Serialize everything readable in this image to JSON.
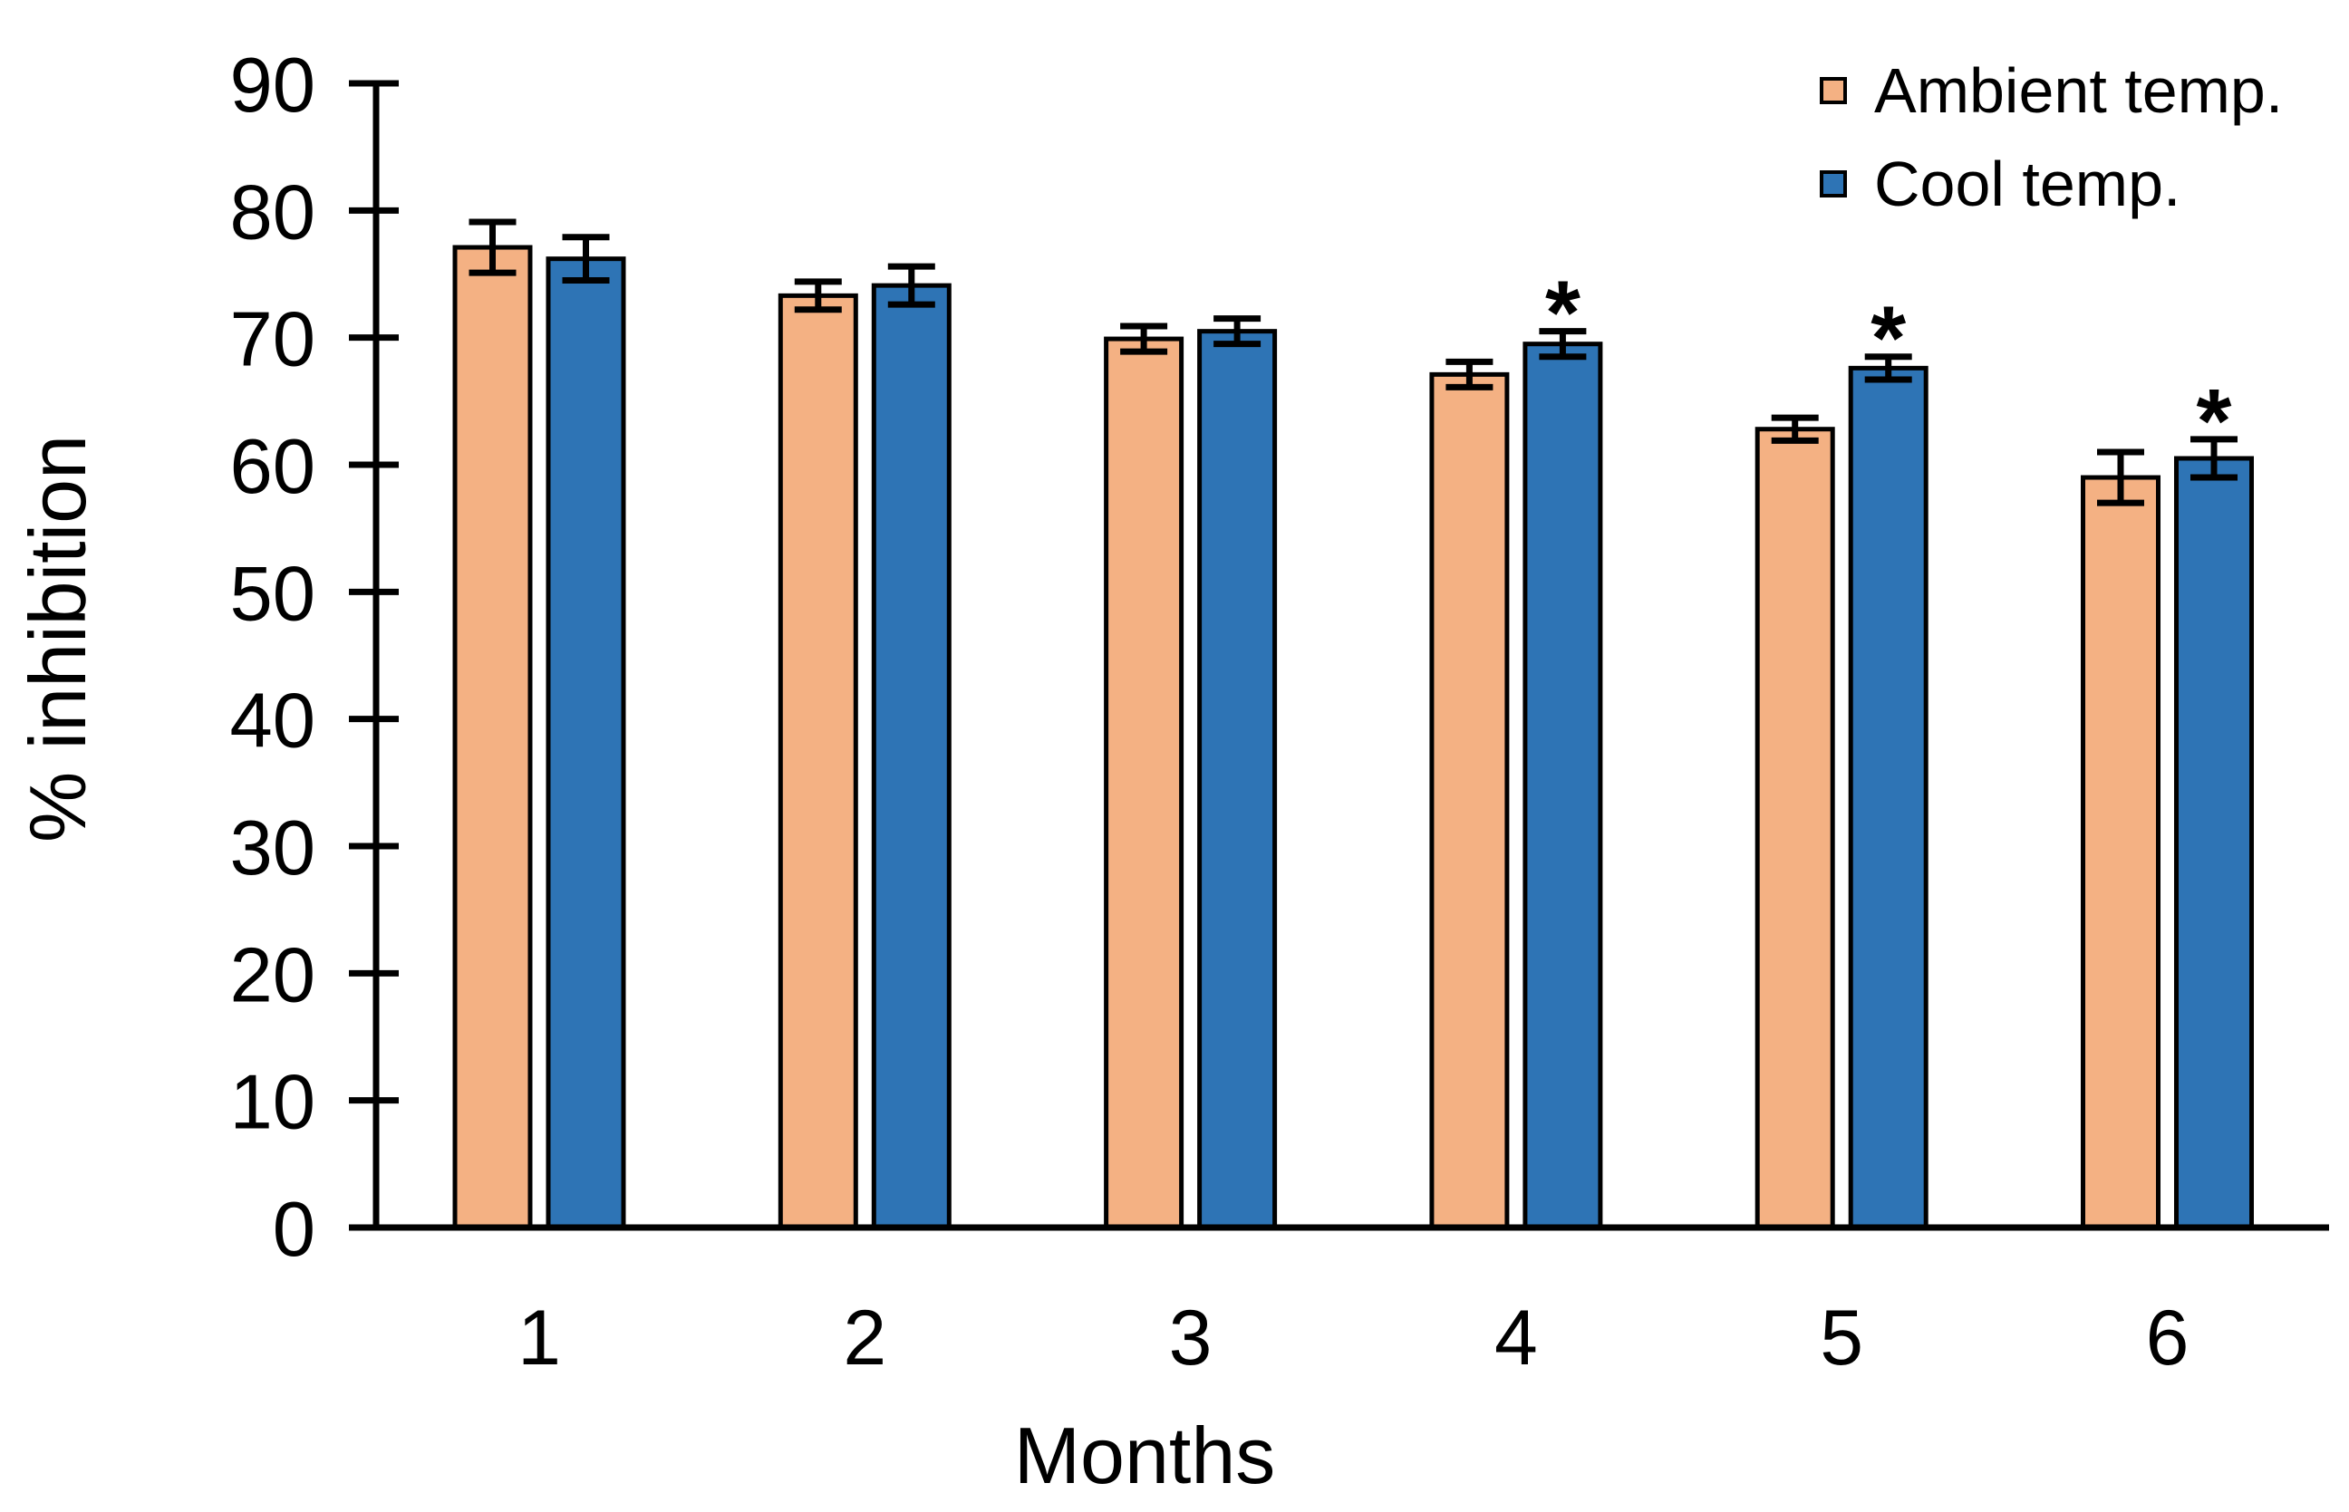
{
  "chart_data": {
    "type": "bar",
    "title": "",
    "xlabel": "Months",
    "ylabel": "% inhibition",
    "categories": [
      "1",
      "2",
      "3",
      "4",
      "5",
      "6"
    ],
    "ylim": [
      0,
      90
    ],
    "ytick_interval": 10,
    "yticks": [
      0,
      10,
      20,
      30,
      40,
      50,
      60,
      70,
      80,
      90
    ],
    "grid": false,
    "legend_position": "top-right",
    "bar_outline_color": "#000000",
    "axis_color": "#000000",
    "significance_marker": "*",
    "series": [
      {
        "name": "Ambient temp.",
        "color": "#F4B183",
        "values": [
          77.1,
          73.3,
          69.9,
          67.1,
          62.8,
          59.0
        ],
        "errors": [
          2.0,
          1.1,
          1.0,
          1.0,
          0.9,
          2.0
        ],
        "significance": [
          "",
          "",
          "",
          "",
          "",
          ""
        ]
      },
      {
        "name": "Cool temp.",
        "color": "#2E74B5",
        "values": [
          76.2,
          74.1,
          70.5,
          69.5,
          67.6,
          60.5
        ],
        "errors": [
          1.7,
          1.5,
          1.0,
          1.0,
          0.9,
          1.5
        ],
        "significance": [
          "",
          "",
          "",
          "*",
          "*",
          "*"
        ]
      }
    ]
  }
}
